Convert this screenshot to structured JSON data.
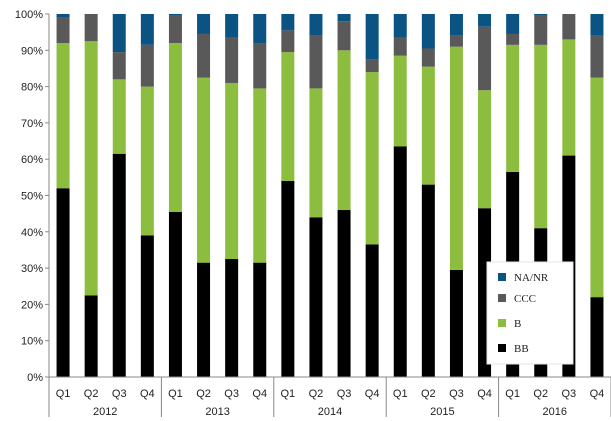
{
  "chart_data": {
    "type": "bar",
    "stacked": true,
    "normalized": true,
    "categories": [
      "Q1",
      "Q2",
      "Q3",
      "Q4",
      "Q1",
      "Q2",
      "Q3",
      "Q4",
      "Q1",
      "Q2",
      "Q3",
      "Q4",
      "Q1",
      "Q2",
      "Q3",
      "Q4",
      "Q1",
      "Q2",
      "Q3",
      "Q4"
    ],
    "groups": [
      {
        "label": "2012",
        "count": 4
      },
      {
        "label": "2013",
        "count": 4
      },
      {
        "label": "2014",
        "count": 4
      },
      {
        "label": "2015",
        "count": 4
      },
      {
        "label": "2016",
        "count": 4
      }
    ],
    "series": [
      {
        "name": "BB",
        "color": "#000000",
        "values": [
          52,
          22.5,
          61.5,
          39,
          45.5,
          31.5,
          32.5,
          31.5,
          54,
          44,
          46,
          36.5,
          63.5,
          53,
          29.5,
          46.5,
          56.5,
          41,
          61,
          22
        ]
      },
      {
        "name": "B",
        "color": "#8cbd3f",
        "values": [
          40,
          70,
          20.5,
          41,
          46.5,
          51,
          48.5,
          48,
          35.5,
          35.5,
          44,
          47.5,
          25,
          32.5,
          61.5,
          32.5,
          35,
          50.5,
          32,
          60.5
        ]
      },
      {
        "name": "CCC",
        "color": "#595959",
        "values": [
          7,
          7.5,
          7.5,
          11.5,
          7.5,
          12,
          12.5,
          12.5,
          6,
          14.5,
          8,
          3.5,
          5,
          5,
          3,
          17.5,
          3,
          8,
          7,
          11.5
        ]
      },
      {
        "name": "NA/NR",
        "color": "#0a5383",
        "values": [
          1,
          0,
          10.5,
          8.5,
          0.5,
          5.5,
          6.5,
          8,
          4.5,
          6,
          2,
          12.5,
          6.5,
          9.5,
          6,
          3.5,
          5.5,
          0.5,
          0,
          6
        ]
      }
    ],
    "yticks": [
      "0%",
      "10%",
      "20%",
      "30%",
      "40%",
      "50%",
      "60%",
      "70%",
      "80%",
      "90%",
      "100%"
    ],
    "ylim": [
      0,
      100
    ],
    "legend_order": [
      "NA/NR",
      "CCC",
      "B",
      "BB"
    ],
    "legend_position": "bottom-right inside plot",
    "grid": false,
    "title": "",
    "xlabel": "",
    "ylabel": ""
  }
}
